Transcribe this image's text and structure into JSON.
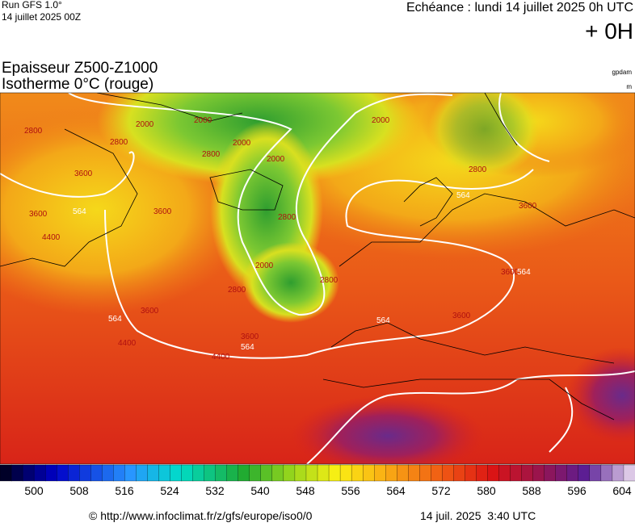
{
  "header": {
    "run": "Run GFS 1.0°",
    "run_date": "14 juillet 2025 00Z",
    "valid": "Echéance : lundi 14 juillet 2025 0h UTC",
    "lead": "+ 0H",
    "title": "Epaisseur Z500-Z1000",
    "subtitle": "Isotherme 0°C (rouge)",
    "unit_top": "gpdam",
    "unit_bottom": "m"
  },
  "map": {
    "contour_labels": [
      "2800",
      "2000",
      "2800",
      "3600",
      "564",
      "3600",
      "4400",
      "2000",
      "2000",
      "2800",
      "2000",
      "2800",
      "564",
      "3600",
      "2800",
      "3600",
      "2800",
      "2000",
      "2000",
      "2800",
      "564",
      "3600",
      "564",
      "3600",
      "564",
      "4400",
      "3600",
      "564",
      "3600",
      "4400"
    ]
  },
  "colorbar": {
    "labels": [
      500,
      508,
      516,
      524,
      532,
      540,
      548,
      556,
      564,
      572,
      580,
      588,
      596,
      604
    ]
  },
  "footer": {
    "source": "© http://www.infoclimat.fr/z/gfs/europe/iso0/0",
    "generated": "14 juil. 2025  3:40 UTC"
  }
}
